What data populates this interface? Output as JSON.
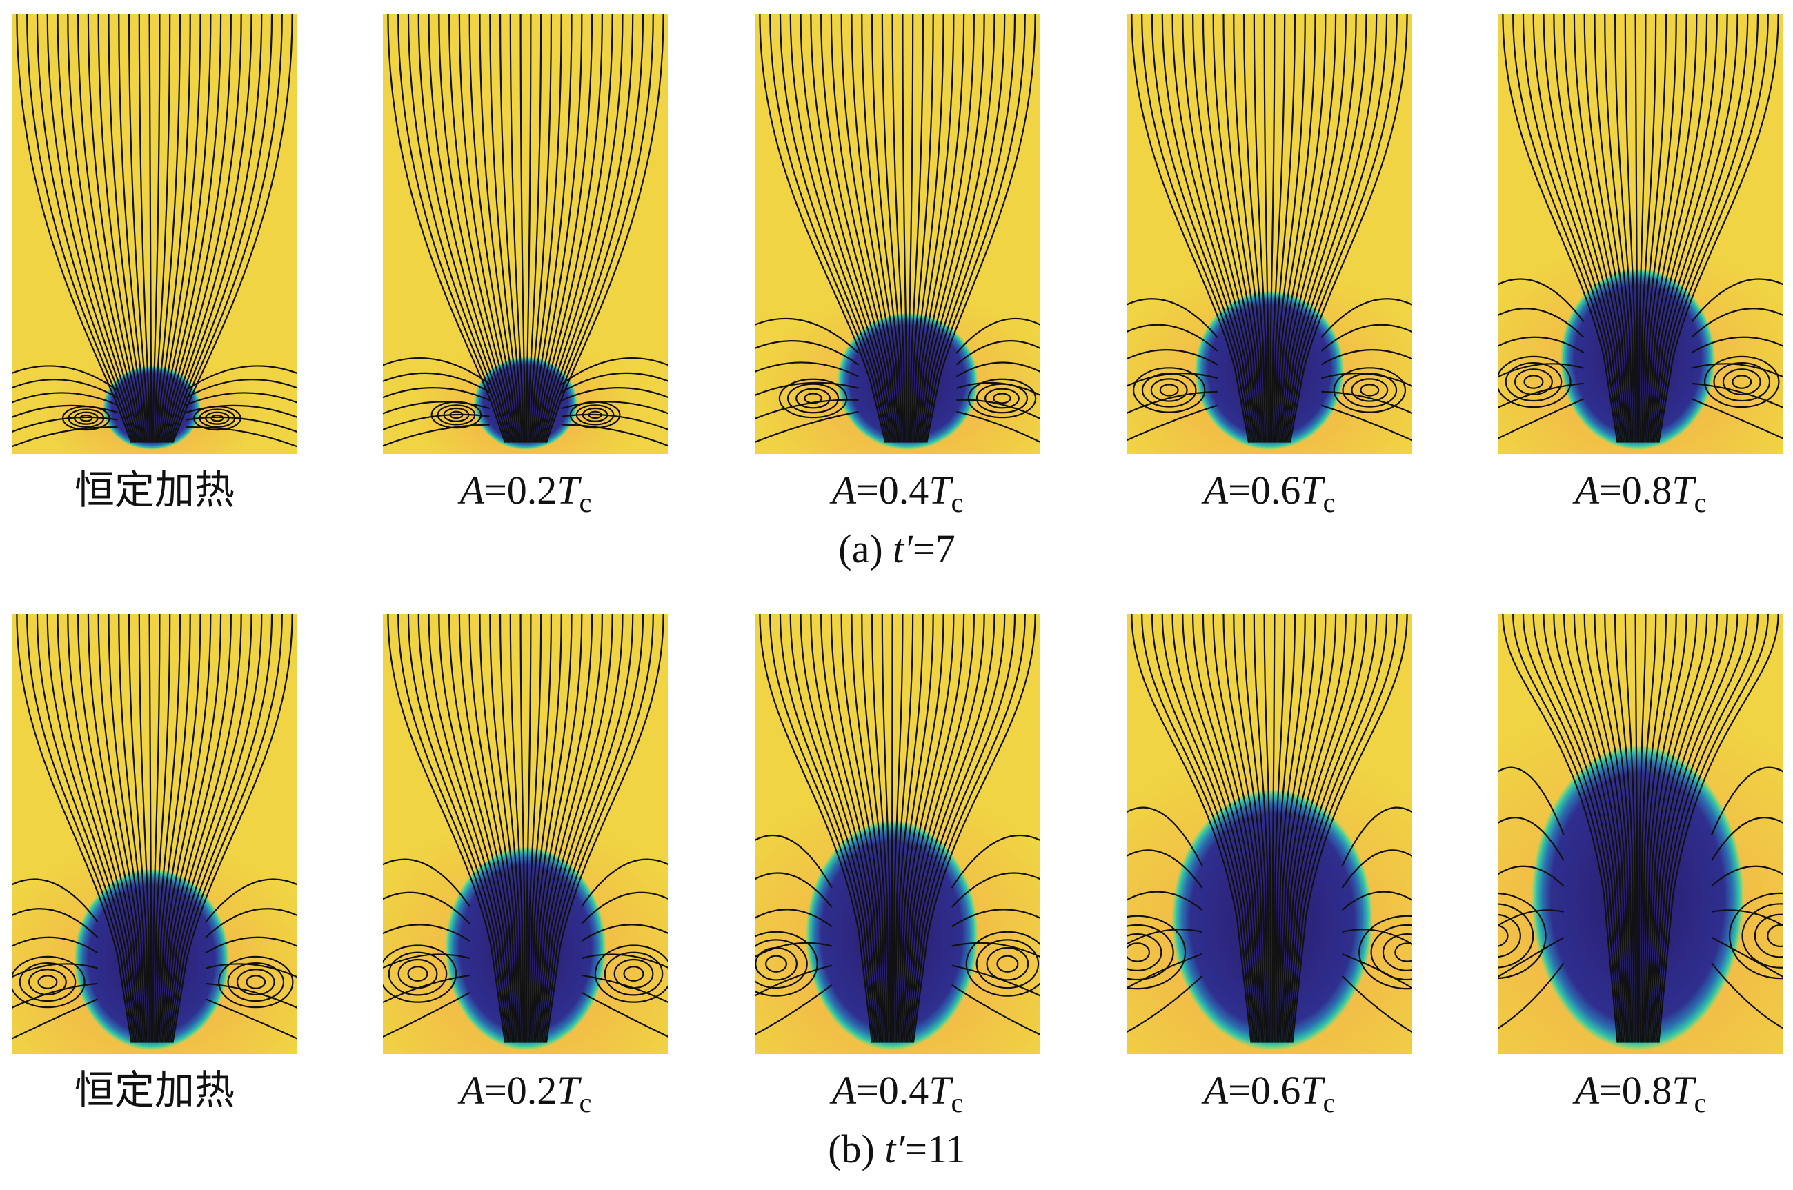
{
  "rows": [
    {
      "panels": [
        {
          "label": [
            "恒定加热"
          ]
        },
        {
          "label": [
            "A",
            "=0.2",
            "T",
            "c"
          ]
        },
        {
          "label": [
            "A",
            "=0.4",
            "T",
            "c"
          ]
        },
        {
          "label": [
            "A",
            "=0.6",
            "T",
            "c"
          ]
        },
        {
          "label": [
            "A",
            "=0.8",
            "T",
            "c"
          ]
        }
      ],
      "caption": [
        "(a) ",
        "t′",
        "=7"
      ]
    },
    {
      "panels": [
        {
          "label": [
            "恒定加热"
          ]
        },
        {
          "label": [
            "A",
            "=0.2",
            "T",
            "c"
          ]
        },
        {
          "label": [
            "A",
            "=0.4",
            "T",
            "c"
          ]
        },
        {
          "label": [
            "A",
            "=0.6",
            "T",
            "c"
          ]
        },
        {
          "label": [
            "A",
            "=0.8",
            "T",
            "c"
          ]
        }
      ],
      "caption": [
        "(b) ",
        "t′",
        "=11"
      ]
    }
  ]
}
